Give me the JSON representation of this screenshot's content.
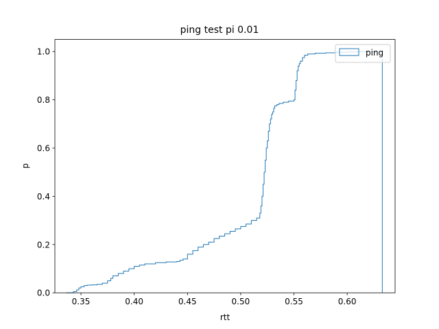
{
  "chart_data": {
    "type": "line",
    "title": "ping test pi 0.01",
    "xlabel": "rtt",
    "ylabel": "p",
    "xlim": [
      0.3255,
      0.645
    ],
    "ylim": [
      0.0,
      1.05
    ],
    "x_ticks": [
      {
        "value": 0.35,
        "label": "0.35"
      },
      {
        "value": 0.4,
        "label": "0.40"
      },
      {
        "value": 0.45,
        "label": "0.45"
      },
      {
        "value": 0.5,
        "label": "0.50"
      },
      {
        "value": 0.55,
        "label": "0.55"
      },
      {
        "value": 0.6,
        "label": "0.60"
      }
    ],
    "y_ticks": [
      {
        "value": 0.0,
        "label": "0.0"
      },
      {
        "value": 0.2,
        "label": "0.2"
      },
      {
        "value": 0.4,
        "label": "0.4"
      },
      {
        "value": 0.6,
        "label": "0.6"
      },
      {
        "value": 0.8,
        "label": "0.8"
      },
      {
        "value": 1.0,
        "label": "1.0"
      }
    ],
    "grid": false,
    "legend_position": "top-right",
    "series": [
      {
        "name": "ping",
        "color": "#1f77b4",
        "x": [
          0.336,
          0.343,
          0.346,
          0.348,
          0.35,
          0.353,
          0.356,
          0.36,
          0.365,
          0.37,
          0.375,
          0.378,
          0.38,
          0.385,
          0.39,
          0.395,
          0.4,
          0.405,
          0.41,
          0.42,
          0.43,
          0.44,
          0.443,
          0.446,
          0.45,
          0.455,
          0.46,
          0.465,
          0.47,
          0.475,
          0.48,
          0.485,
          0.49,
          0.495,
          0.5,
          0.505,
          0.51,
          0.515,
          0.518,
          0.519,
          0.52,
          0.521,
          0.522,
          0.523,
          0.524,
          0.525,
          0.526,
          0.527,
          0.528,
          0.529,
          0.53,
          0.531,
          0.532,
          0.534,
          0.536,
          0.54,
          0.545,
          0.55,
          0.551,
          0.552,
          0.553,
          0.554,
          0.555,
          0.556,
          0.558,
          0.56,
          0.563,
          0.57,
          0.58,
          0.59,
          0.6,
          0.61,
          0.62,
          0.63,
          0.633,
          0.633
        ],
        "y": [
          0.0,
          0.005,
          0.012,
          0.02,
          0.025,
          0.03,
          0.032,
          0.033,
          0.035,
          0.04,
          0.05,
          0.06,
          0.07,
          0.08,
          0.09,
          0.1,
          0.11,
          0.115,
          0.12,
          0.125,
          0.128,
          0.13,
          0.135,
          0.14,
          0.16,
          0.175,
          0.19,
          0.2,
          0.21,
          0.225,
          0.235,
          0.245,
          0.255,
          0.265,
          0.275,
          0.285,
          0.3,
          0.31,
          0.33,
          0.36,
          0.4,
          0.45,
          0.5,
          0.55,
          0.6,
          0.63,
          0.67,
          0.7,
          0.72,
          0.74,
          0.75,
          0.765,
          0.775,
          0.78,
          0.785,
          0.79,
          0.795,
          0.8,
          0.84,
          0.88,
          0.92,
          0.94,
          0.95,
          0.96,
          0.975,
          0.985,
          0.99,
          0.993,
          0.995,
          0.997,
          0.998,
          0.999,
          0.9995,
          1.0,
          1.0,
          0.0
        ]
      }
    ]
  }
}
